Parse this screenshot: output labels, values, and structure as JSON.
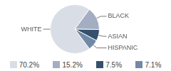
{
  "chart_data": {
    "type": "pie",
    "categories": [
      "WHITE",
      "BLACK",
      "ASIAN",
      "HISPANIC"
    ],
    "values": [
      70.2,
      15.2,
      7.5,
      7.1
    ],
    "value_labels": [
      "70.2%",
      "15.2%",
      "7.5%",
      "7.1%"
    ],
    "colors": [
      "#d9dde6",
      "#a3aec2",
      "#34506e",
      "#7289a6"
    ],
    "legend": "bottom"
  }
}
